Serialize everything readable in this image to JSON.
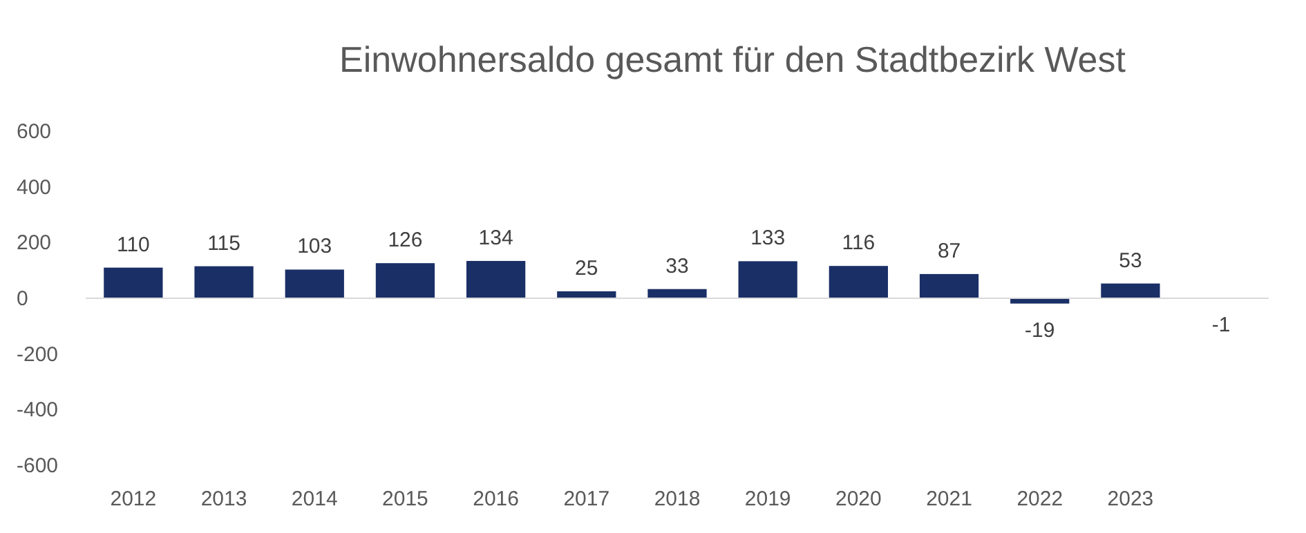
{
  "chart_data": {
    "type": "bar",
    "title": "Einwohnersaldo gesamt für den Stadtbezirk West",
    "categories": [
      "2012",
      "2013",
      "2014",
      "2015",
      "2016",
      "2017",
      "2018",
      "2019",
      "2020",
      "2021",
      "2022",
      "2023",
      null
    ],
    "values": [
      110,
      115,
      103,
      126,
      134,
      25,
      33,
      133,
      116,
      87,
      -19,
      53,
      -1
    ],
    "color": "#1a2f66",
    "ylim": [
      -600,
      600
    ],
    "yticks": [
      -600,
      -400,
      -200,
      0,
      200,
      400,
      600
    ],
    "data_labels": true
  }
}
